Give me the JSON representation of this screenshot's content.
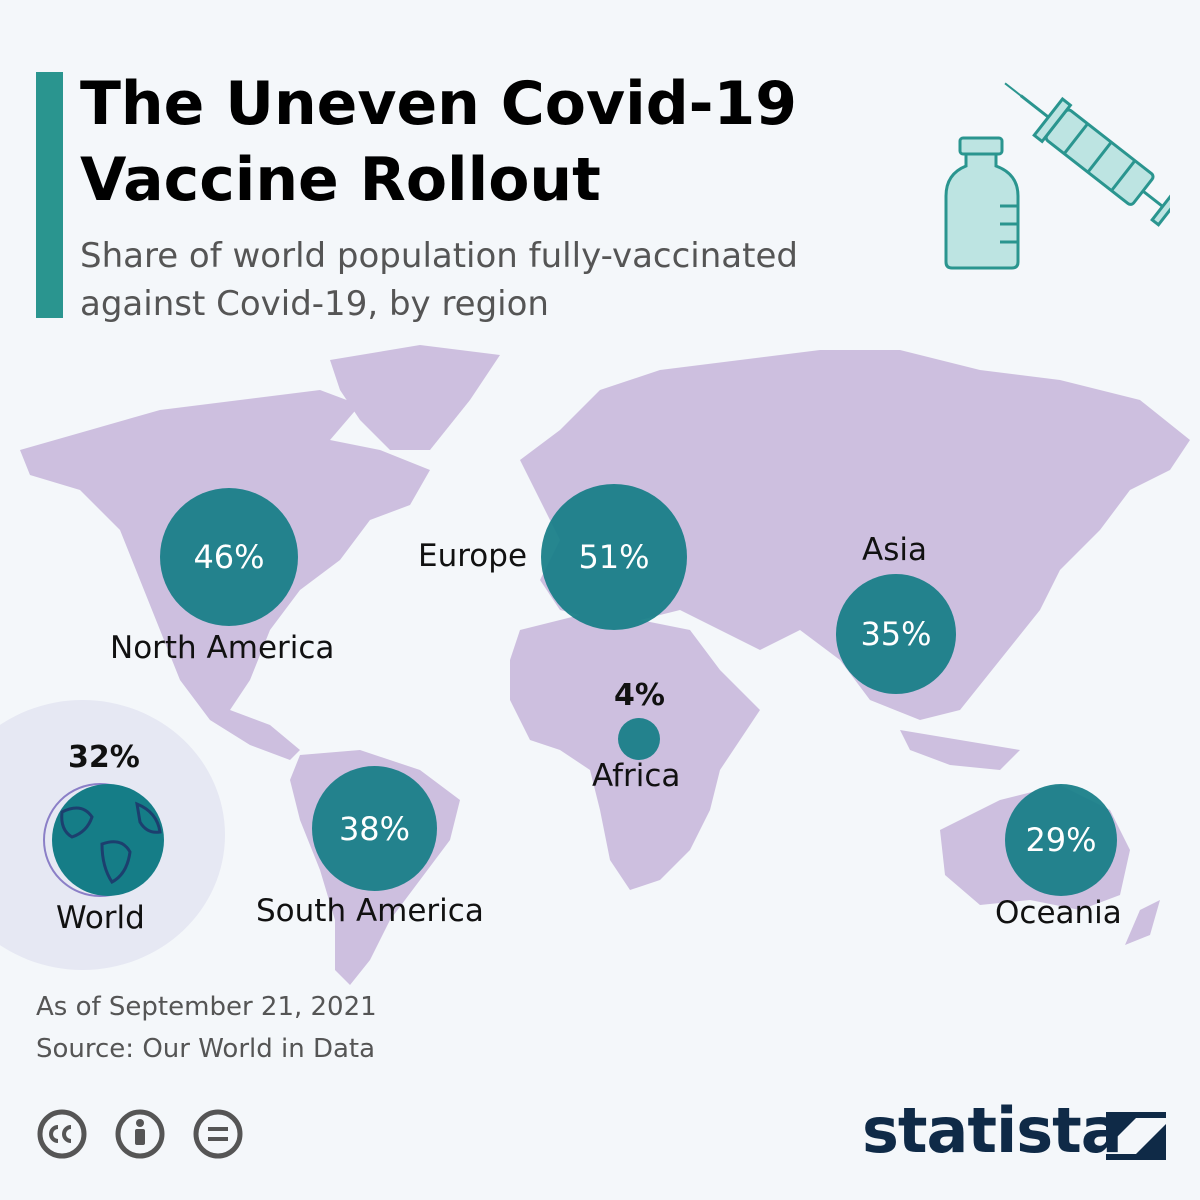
{
  "header": {
    "title": "The Uneven Covid-19 Vaccine Rollout",
    "subtitle": "Share of world population fully-vaccinated against Covid-19, by region"
  },
  "regions": {
    "north_america": {
      "label": "North America",
      "value": "46%"
    },
    "europe": {
      "label": "Europe",
      "value": "51%"
    },
    "asia": {
      "label": "Asia",
      "value": "35%"
    },
    "africa": {
      "label": "Africa",
      "value": "4%"
    },
    "south_america": {
      "label": "South America",
      "value": "38%"
    },
    "oceania": {
      "label": "Oceania",
      "value": "29%"
    },
    "world": {
      "label": "World",
      "value": "32%"
    }
  },
  "footer": {
    "date_note": "As of September 21, 2021",
    "source": "Source: Our World in Data",
    "brand": "statista"
  },
  "colors": {
    "accent": "#2a958f",
    "bubble": "#157d87",
    "land": "#cdbfdf",
    "brand": "#0f2a47"
  },
  "icons": [
    "syringe-icon",
    "vial-icon",
    "globe-icon",
    "cc-icon",
    "by-icon",
    "nd-icon",
    "statista-logo-icon"
  ]
}
